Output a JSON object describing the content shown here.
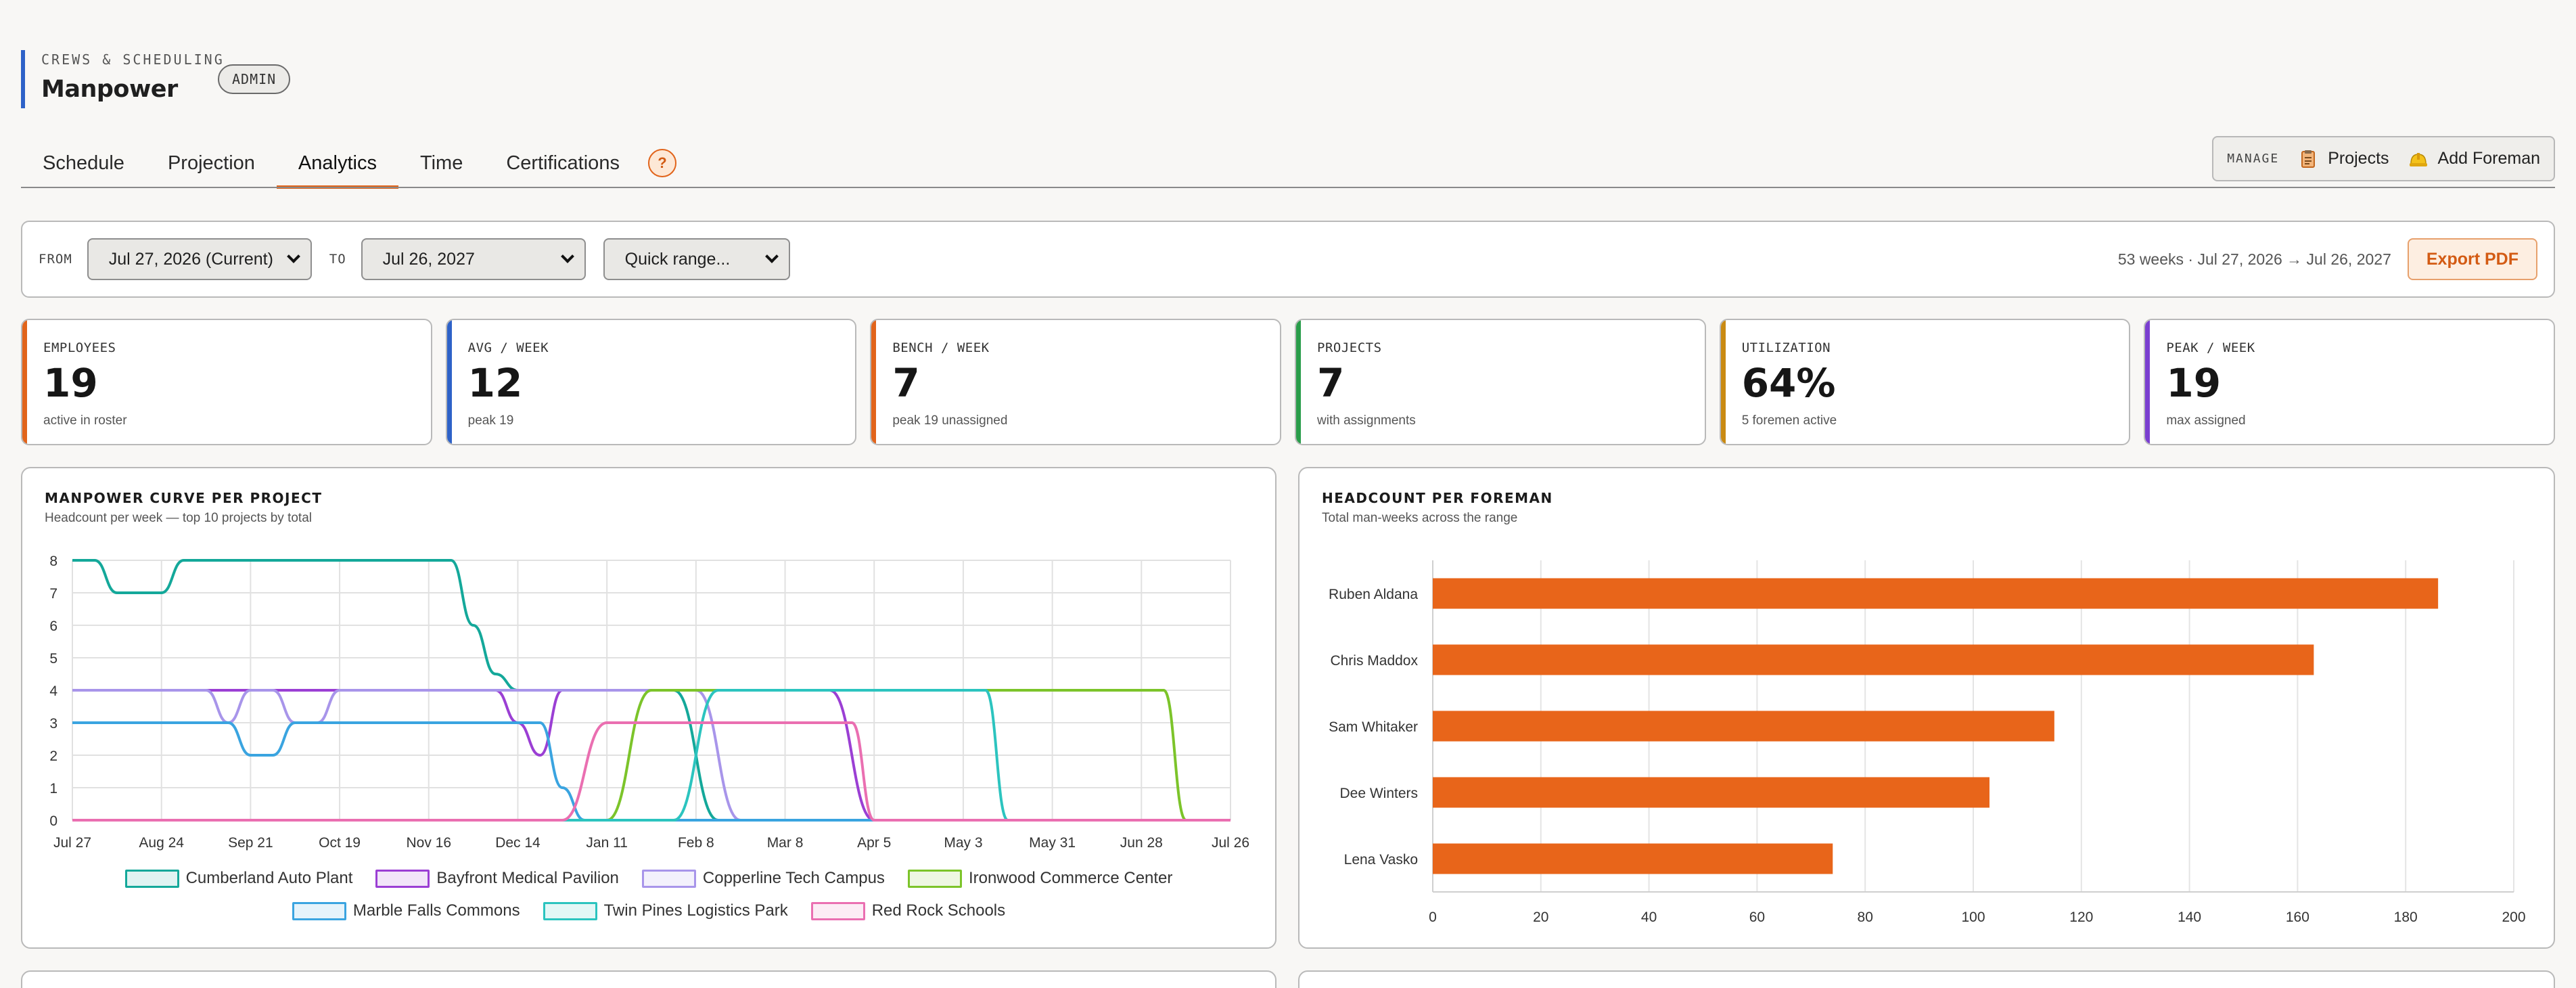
{
  "header": {
    "eyebrow": "CREWS & SCHEDULING",
    "title": "Manpower",
    "badge": "ADMIN"
  },
  "tabs": [
    {
      "label": "Schedule",
      "active": false
    },
    {
      "label": "Projection",
      "active": false
    },
    {
      "label": "Analytics",
      "active": true
    },
    {
      "label": "Time",
      "active": false
    },
    {
      "label": "Certifications",
      "active": false
    }
  ],
  "help_label": "?",
  "manage": {
    "label": "MANAGE",
    "projects": "Projects",
    "add_foreman": "Add Foreman"
  },
  "filters": {
    "from_label": "FROM",
    "from_value": "Jul 27, 2026 (Current)",
    "to_label": "TO",
    "to_value": "Jul 26, 2027",
    "quick_range": "Quick range...",
    "range_info": "53 weeks · Jul 27, 2026 → Jul 26, 2027",
    "export_label": "Export PDF"
  },
  "kpis": [
    {
      "label": "EMPLOYEES",
      "value": "19",
      "sub": "active in roster",
      "color": "#e1641b"
    },
    {
      "label": "AVG / WEEK",
      "value": "12",
      "sub": "peak 19",
      "color": "#2e62c8"
    },
    {
      "label": "BENCH / WEEK",
      "value": "7",
      "sub": "peak 19 unassigned",
      "color": "#e1641b"
    },
    {
      "label": "PROJECTS",
      "value": "7",
      "sub": "with assignments",
      "color": "#2a9d4a"
    },
    {
      "label": "UTILIZATION",
      "value": "64%",
      "sub": "5 foremen active",
      "color": "#c98a12"
    },
    {
      "label": "PEAK / WEEK",
      "value": "19",
      "sub": "max assigned",
      "color": "#7a3fd0"
    }
  ],
  "chart_data": [
    {
      "type": "line",
      "title": "MANPOWER CURVE PER PROJECT",
      "subtitle": "Headcount per week — top 10 projects by total",
      "x_ticks": [
        "Jul 27",
        "Aug 24",
        "Sep 21",
        "Oct 19",
        "Nov 16",
        "Dec 14",
        "Jan 11",
        "Feb 8",
        "Mar 8",
        "Apr 5",
        "May 3",
        "May 31",
        "Jun 28",
        "Jul 26"
      ],
      "x_weeks": 53,
      "ylim": [
        0,
        8
      ],
      "y_ticks": [
        0,
        1,
        2,
        3,
        4,
        5,
        6,
        7,
        8
      ],
      "grid": true,
      "legend_position": "bottom",
      "series": [
        {
          "name": "Cumberland Auto Plant",
          "color": "#14a89a",
          "points": [
            [
              0,
              8
            ],
            [
              1,
              8
            ],
            [
              2,
              7
            ],
            [
              3,
              7
            ],
            [
              4,
              7
            ],
            [
              5,
              8
            ],
            [
              6,
              8
            ],
            [
              8,
              8
            ],
            [
              12,
              8
            ],
            [
              16,
              8
            ],
            [
              17,
              8
            ],
            [
              18,
              6
            ],
            [
              19,
              4.5
            ],
            [
              20,
              4
            ],
            [
              24,
              4
            ],
            [
              26,
              4
            ],
            [
              27,
              4
            ],
            [
              29,
              0
            ],
            [
              52,
              0
            ]
          ]
        },
        {
          "name": "Bayfront Medical Pavilion",
          "color": "#9b3fd4",
          "points": [
            [
              0,
              4
            ],
            [
              16,
              4
            ],
            [
              19,
              4
            ],
            [
              20,
              3
            ],
            [
              21,
              2
            ],
            [
              22,
              4
            ],
            [
              33,
              4
            ],
            [
              34,
              4
            ],
            [
              36,
              0
            ],
            [
              52,
              0
            ]
          ]
        },
        {
          "name": "Copperline Tech Campus",
          "color": "#a895ea",
          "points": [
            [
              0,
              4
            ],
            [
              5,
              4
            ],
            [
              6,
              4
            ],
            [
              7,
              3
            ],
            [
              8,
              4
            ],
            [
              9,
              4
            ],
            [
              10,
              3
            ],
            [
              11,
              3
            ],
            [
              12,
              4
            ],
            [
              26,
              4
            ],
            [
              27,
              4
            ],
            [
              28,
              4
            ],
            [
              30,
              0
            ],
            [
              52,
              0
            ]
          ]
        },
        {
          "name": "Ironwood Commerce Center",
          "color": "#7cc42a",
          "points": [
            [
              0,
              0
            ],
            [
              24,
              0
            ],
            [
              26,
              4
            ],
            [
              48,
              4
            ],
            [
              49,
              4
            ],
            [
              50,
              0
            ],
            [
              52,
              0
            ]
          ]
        },
        {
          "name": "Marble Falls Commons",
          "color": "#3aa4e0",
          "points": [
            [
              0,
              3
            ],
            [
              6,
              3
            ],
            [
              7,
              3
            ],
            [
              8,
              2
            ],
            [
              9,
              2
            ],
            [
              10,
              3
            ],
            [
              11,
              3
            ],
            [
              20,
              3
            ],
            [
              21,
              3
            ],
            [
              22,
              1
            ],
            [
              23,
              0
            ],
            [
              52,
              0
            ]
          ]
        },
        {
          "name": "Twin Pines Logistics Park",
          "color": "#2cc4bf",
          "points": [
            [
              0,
              0
            ],
            [
              27,
              0
            ],
            [
              29,
              4
            ],
            [
              40,
              4
            ],
            [
              41,
              4
            ],
            [
              42,
              0
            ],
            [
              52,
              0
            ]
          ]
        },
        {
          "name": "Red Rock Schools",
          "color": "#ea6fb1",
          "points": [
            [
              0,
              0
            ],
            [
              22,
              0
            ],
            [
              24,
              3
            ],
            [
              34,
              3
            ],
            [
              35,
              3
            ],
            [
              36,
              0
            ],
            [
              52,
              0
            ]
          ]
        }
      ]
    },
    {
      "type": "bar",
      "orientation": "horizontal",
      "title": "HEADCOUNT PER FOREMAN",
      "subtitle": "Total man-weeks across the range",
      "categories": [
        "Ruben Aldana",
        "Chris Maddox",
        "Sam Whitaker",
        "Dee Winters",
        "Lena Vasko"
      ],
      "values": [
        186,
        163,
        115,
        103,
        74
      ],
      "xlim": [
        0,
        200
      ],
      "x_ticks": [
        0,
        20,
        40,
        60,
        80,
        100,
        120,
        140,
        160,
        180,
        200
      ],
      "color": "#e8651a",
      "grid": true
    }
  ]
}
